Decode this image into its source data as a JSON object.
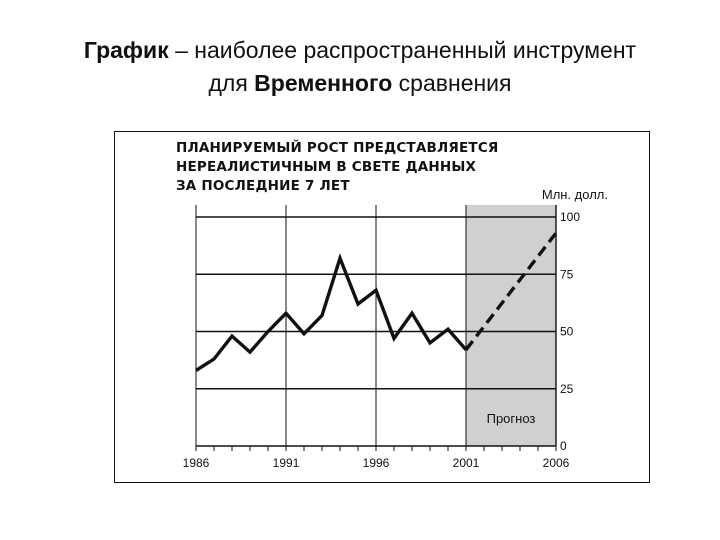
{
  "slide": {
    "title_bold_1": "График",
    "title_text_1": " – наиболее распространенный инструмент",
    "title_text_2": "для ",
    "title_bold_2": "Временного",
    "title_text_3": " сравнения"
  },
  "chart_data": {
    "type": "line",
    "title": "ПЛАНИРУЕМЫЙ РОСТ ПРЕДСТАВЛЯЕТСЯ НЕРЕАЛИСТИЧНЫМ В СВЕТЕ ДАННЫХ ЗА ПОСЛЕДНИЕ 7 ЛЕТ",
    "title_lines": [
      "ПЛАНИРУЕМЫЙ РОСТ ПРЕДСТАВЛЯЕТСЯ",
      "НЕРЕАЛИСТИЧНЫМ В СВЕТЕ ДАННЫХ",
      "ЗА ПОСЛЕДНИЕ 7 ЛЕТ"
    ],
    "ylabel": "Млн. долл.",
    "xlim": [
      1986,
      2006
    ],
    "ylim": [
      0,
      100
    ],
    "x_ticks": [
      1986,
      1991,
      1996,
      2001,
      2006
    ],
    "y_ticks": [
      0,
      25,
      50,
      75,
      100
    ],
    "forecast_region": {
      "from": 2001,
      "to": 2006,
      "label": "Прогноз"
    },
    "series": [
      {
        "style": "solid",
        "points": [
          [
            1986,
            33
          ],
          [
            1987,
            38
          ],
          [
            1988,
            48
          ],
          [
            1989,
            41
          ],
          [
            1990,
            50
          ],
          [
            1991,
            58
          ],
          [
            1992,
            49
          ],
          [
            1993,
            57
          ],
          [
            1994,
            82
          ],
          [
            1995,
            62
          ],
          [
            1996,
            68
          ],
          [
            1997,
            47
          ],
          [
            1998,
            58
          ],
          [
            1999,
            45
          ],
          [
            2000,
            51
          ],
          [
            2001,
            42
          ]
        ]
      },
      {
        "style": "dashed",
        "points": [
          [
            2001,
            42
          ],
          [
            2006,
            93
          ]
        ]
      }
    ],
    "colors": {
      "line": "#111111",
      "forecast_fill": "#d0d0d0",
      "grid": "#111111"
    }
  }
}
